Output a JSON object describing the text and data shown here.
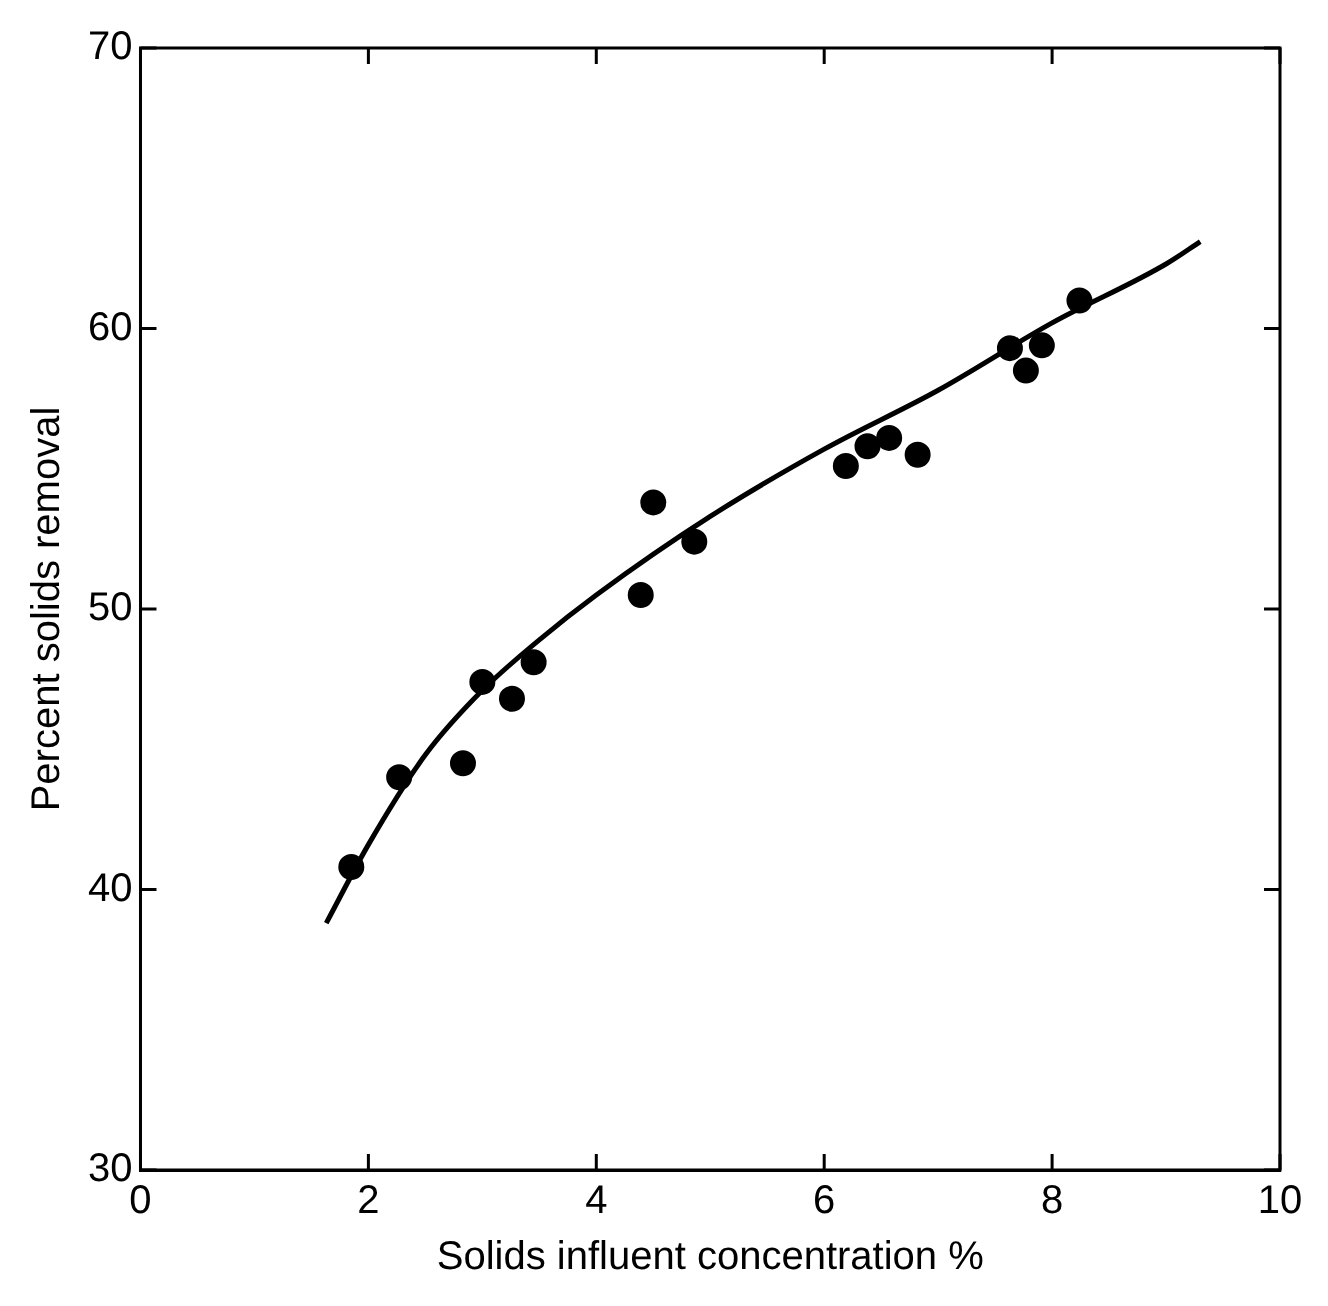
{
  "chart_data": {
    "type": "scatter",
    "xlabel": "Solids influent concentration %",
    "ylabel": "Percent solids removal",
    "xlim": [
      0,
      10
    ],
    "xticks": [
      0,
      2,
      4,
      6,
      8,
      10
    ],
    "ylim": [
      30,
      70
    ],
    "yticks": [
      30,
      40,
      50,
      60,
      70
    ],
    "grid": false,
    "legend": false,
    "marker": "circle",
    "series": [
      {
        "color": "#000000",
        "x": [
          1.85,
          2.27,
          2.83,
          3.0,
          3.26,
          3.45,
          4.39,
          4.5,
          4.86,
          6.19,
          6.38,
          6.57,
          6.82,
          7.63,
          7.77,
          7.91,
          8.24
        ],
        "values": [
          40.8,
          44.0,
          44.5,
          47.4,
          46.8,
          48.1,
          50.5,
          53.8,
          52.4,
          55.1,
          55.8,
          56.1,
          55.5,
          59.3,
          58.5,
          59.4,
          61.0
        ]
      },
      {
        "type": "line",
        "color": "#000000",
        "marker": "none",
        "line_style": "solid",
        "x": [
          1.63,
          2,
          2.5,
          3,
          3.5,
          4,
          5,
          6,
          7,
          8,
          9,
          9.3
        ],
        "values": [
          38.8,
          41.6,
          44.8,
          47.1,
          48.9,
          50.5,
          53.3,
          55.7,
          57.8,
          60.2,
          62.3,
          63.1
        ]
      }
    ]
  }
}
